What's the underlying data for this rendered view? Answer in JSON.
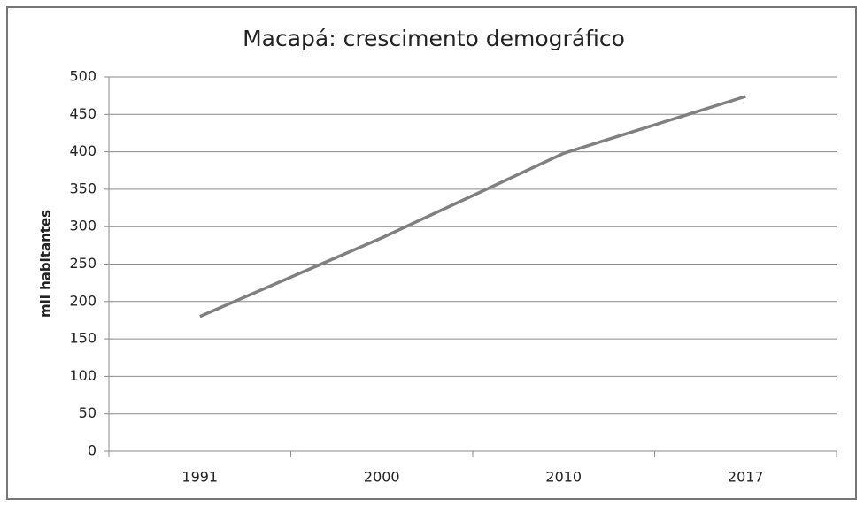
{
  "chart_data": {
    "type": "line",
    "title": "Macapá: crescimento demográfico",
    "y_label": "mil habitantes",
    "categories": [
      "1991",
      "2000",
      "2010",
      "2017"
    ],
    "values": [
      180,
      285,
      398,
      474
    ],
    "color": "#808080",
    "ylim": [
      0,
      500
    ],
    "yticks": [
      0,
      50,
      100,
      150,
      200,
      250,
      300,
      350,
      400,
      450,
      500
    ],
    "grid": true
  }
}
